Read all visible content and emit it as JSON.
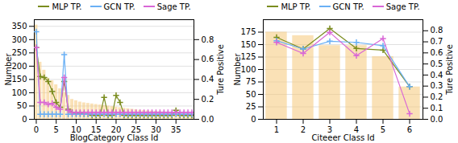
{
  "chart_data": [
    {
      "type": "bar",
      "x": [
        0,
        1,
        2,
        3,
        4,
        5,
        6,
        7,
        8,
        9,
        10,
        11,
        12,
        13,
        14,
        15,
        16,
        17,
        18,
        19,
        20,
        21,
        22,
        23,
        24,
        25,
        26,
        27,
        28,
        29,
        30,
        31,
        32,
        33,
        34,
        35,
        36,
        37,
        38,
        39
      ],
      "values": [
        355,
        215,
        185,
        155,
        145,
        130,
        115,
        100,
        90,
        75,
        70,
        65,
        62,
        60,
        58,
        56,
        54,
        52,
        50,
        48,
        46,
        44,
        42,
        40,
        38,
        36,
        34,
        33,
        32,
        31,
        30,
        29,
        28,
        27,
        26,
        25,
        24,
        23,
        22,
        21
      ],
      "color": "#f5c97a",
      "series": [
        {
          "name": "MLP TP.",
          "type": "line",
          "axis": "y2",
          "color": "#7a8c1e",
          "marker": "plus",
          "values": [
            0.72,
            0.43,
            0.42,
            0.38,
            0.28,
            0.17,
            0.12,
            0.38,
            0.1,
            0.07,
            0.06,
            0.06,
            0.05,
            0.05,
            0.04,
            0.04,
            0.04,
            0.22,
            0.04,
            0.04,
            0.24,
            0.17,
            0.04,
            0.04,
            0.04,
            0.04,
            0.04,
            0.04,
            0.04,
            0.04,
            0.04,
            0.04,
            0.04,
            0.04,
            0.04,
            0.09,
            0.04,
            0.04,
            0.04,
            0.04
          ]
        },
        {
          "name": "GCN TP.",
          "type": "line",
          "axis": "y2",
          "color": "#6ab0f5",
          "marker": "plus",
          "values": [
            0.88,
            0.05,
            0.05,
            0.05,
            0.05,
            0.05,
            0.05,
            0.65,
            0.05,
            0.05,
            0.05,
            0.05,
            0.05,
            0.05,
            0.05,
            0.05,
            0.05,
            0.05,
            0.05,
            0.05,
            0.05,
            0.05,
            0.05,
            0.05,
            0.05,
            0.05,
            0.05,
            0.05,
            0.05,
            0.05,
            0.05,
            0.05,
            0.05,
            0.05,
            0.05,
            0.05,
            0.05,
            0.05,
            0.05,
            0.05
          ]
        },
        {
          "name": "Sage TP.",
          "type": "line",
          "axis": "y2",
          "color": "#d966d6",
          "marker": "plus",
          "values": [
            0.72,
            0.17,
            0.17,
            0.15,
            0.16,
            0.12,
            0.1,
            0.42,
            0.09,
            0.07,
            0.07,
            0.07,
            0.07,
            0.07,
            0.07,
            0.07,
            0.07,
            0.07,
            0.07,
            0.07,
            0.07,
            0.07,
            0.07,
            0.07,
            0.07,
            0.07,
            0.07,
            0.07,
            0.07,
            0.07,
            0.07,
            0.07,
            0.07,
            0.07,
            0.07,
            0.07,
            0.07,
            0.07,
            0.07,
            0.07
          ]
        }
      ],
      "xlabel": "BlogCategory Class Id",
      "ylabel": "Number",
      "y2label": "Ture Positive",
      "xlim": [
        -0.5,
        39.5
      ],
      "ylim": [
        0,
        375
      ],
      "y2lim": [
        0.0,
        1.0
      ],
      "xticks": [
        0,
        5,
        10,
        15,
        20,
        25,
        30,
        35
      ],
      "yticks": [
        0,
        50,
        100,
        150,
        200,
        250,
        300,
        350
      ],
      "y2ticks": [
        {
          "value": 0,
          "label": "0.0"
        },
        0.2,
        0.4,
        0.6,
        0.8
      ],
      "grid": true,
      "legend": "top"
    },
    {
      "type": "bar",
      "x": [
        1,
        2,
        3,
        4,
        5,
        6
      ],
      "values": [
        175,
        168,
        148,
        148,
        126,
        65
      ],
      "color": "#f5c97a",
      "series": [
        {
          "name": "MLP TP.",
          "type": "line",
          "axis": "y2",
          "color": "#7a8c1e",
          "marker": "plus",
          "values": [
            0.74,
            0.635,
            0.82,
            0.64,
            0.625,
            0.295
          ]
        },
        {
          "name": "GCN TP.",
          "type": "line",
          "axis": "y2",
          "color": "#6ab0f5",
          "marker": "plus",
          "values": [
            0.71,
            0.635,
            0.705,
            0.695,
            0.665,
            0.295
          ]
        },
        {
          "name": "Sage TP.",
          "type": "line",
          "axis": "y2",
          "color": "#d966d6",
          "marker": "plus",
          "values": [
            0.695,
            0.595,
            0.785,
            0.575,
            0.73,
            0.05
          ]
        }
      ],
      "xlabel": "Citeeer Class Id",
      "ylabel": "Number",
      "y2label": "Ture Positive",
      "xlim": [
        0.5,
        6.5
      ],
      "ylim": [
        0,
        200
      ],
      "y2lim": [
        0.0,
        0.9
      ],
      "xticks": [
        1,
        2,
        3,
        4,
        5,
        6
      ],
      "yticks": [
        0,
        25,
        50,
        75,
        100,
        125,
        150,
        175
      ],
      "y2ticks": [
        {
          "value": 0,
          "label": "0.0"
        },
        0.1,
        0.2,
        0.3,
        0.4,
        0.5,
        0.6,
        0.7,
        0.8
      ],
      "grid": true,
      "legend": "top"
    }
  ]
}
